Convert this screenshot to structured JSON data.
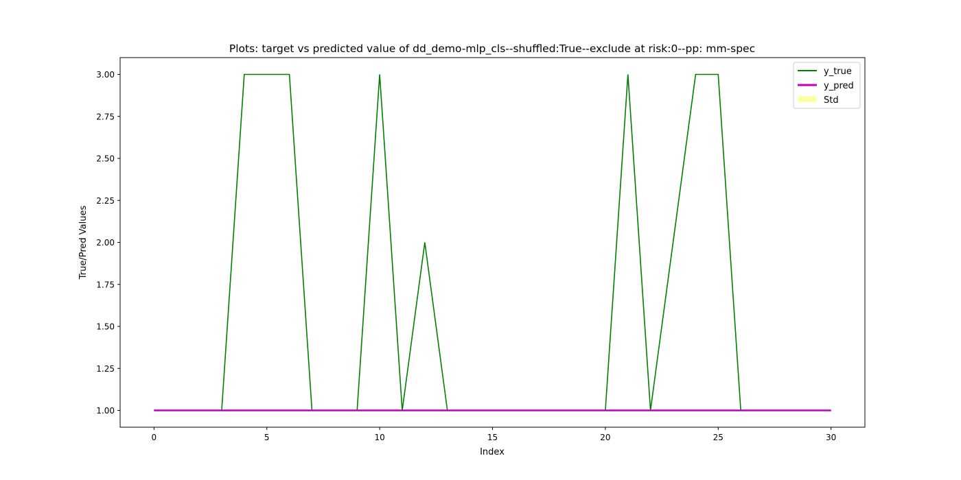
{
  "chart_data": {
    "type": "line",
    "title": "Plots: target vs predicted value of dd_demo-mlp_cls--shuffled:True--exclude at risk:0--pp: mm-spec",
    "xlabel": "Index",
    "ylabel": "True/Pred Values",
    "xlim": [
      -1.5,
      31.5
    ],
    "ylim": [
      0.9,
      3.1
    ],
    "xticks": [
      0,
      5,
      10,
      15,
      20,
      25,
      30
    ],
    "xtick_labels": [
      "0",
      "5",
      "10",
      "15",
      "20",
      "25",
      "30"
    ],
    "yticks": [
      1.0,
      1.25,
      1.5,
      1.75,
      2.0,
      2.25,
      2.5,
      2.75,
      3.0
    ],
    "ytick_labels": [
      "1.00",
      "1.25",
      "1.50",
      "1.75",
      "2.00",
      "2.25",
      "2.50",
      "2.75",
      "3.00"
    ],
    "grid": false,
    "legend_position": "top-right",
    "x": [
      0,
      1,
      2,
      3,
      4,
      5,
      6,
      7,
      8,
      9,
      10,
      11,
      12,
      13,
      14,
      15,
      16,
      17,
      18,
      19,
      20,
      21,
      22,
      23,
      24,
      25,
      26,
      27,
      28,
      29,
      30
    ],
    "series": [
      {
        "name": "y_true",
        "color": "#008000",
        "values": [
          1,
          1,
          1,
          1,
          3,
          3,
          3,
          1,
          1,
          1,
          3,
          1,
          2,
          1,
          1,
          1,
          1,
          1,
          1,
          1,
          1,
          3,
          1,
          2,
          3,
          3,
          1,
          1,
          1,
          1,
          1
        ]
      },
      {
        "name": "y_pred",
        "color": "#bf00bf",
        "values": [
          1,
          1,
          1,
          1,
          1,
          1,
          1,
          1,
          1,
          1,
          1,
          1,
          1,
          1,
          1,
          1,
          1,
          1,
          1,
          1,
          1,
          1,
          1,
          1,
          1,
          1,
          1,
          1,
          1,
          1,
          1
        ]
      }
    ],
    "std_band": {
      "name": "Std",
      "color": "#ffff66",
      "values": [
        0,
        0,
        0,
        0,
        0,
        0,
        0,
        0,
        0,
        0,
        0,
        0,
        0,
        0,
        0,
        0,
        0,
        0,
        0,
        0,
        0,
        0,
        0,
        0,
        0,
        0,
        0,
        0,
        0,
        0,
        0
      ]
    }
  }
}
